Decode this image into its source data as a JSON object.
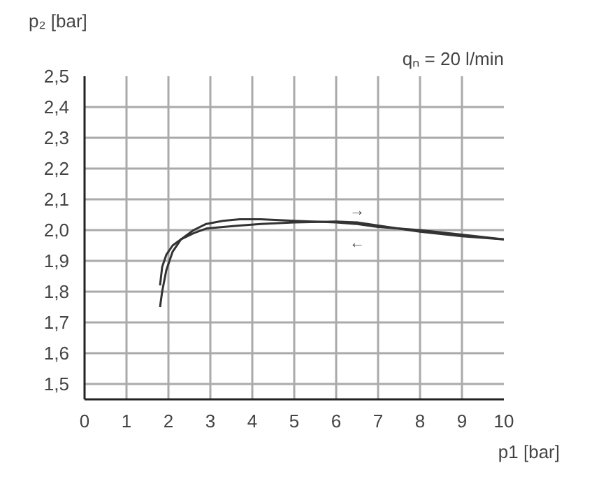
{
  "chart_data": {
    "type": "line",
    "xlabel": "p1 [bar]",
    "ylabel": "p₂ [bar]",
    "annotations": [
      "qₙ = 20 l/min",
      {
        "text": "→",
        "x": 6.5,
        "y": 2.025
      },
      {
        "text": "←",
        "x": 6.5,
        "y": 2.02
      }
    ],
    "series": [
      {
        "color": "#333333",
        "x": [
          1.8,
          1.85,
          1.95,
          2.1,
          2.3,
          2.6,
          2.9,
          3.3,
          3.7,
          4.2,
          5.0,
          6.0,
          6.5,
          7.0,
          8.0,
          9.0,
          10.0
        ],
        "values": [
          1.75,
          1.8,
          1.87,
          1.93,
          1.97,
          2.0,
          2.02,
          2.03,
          2.035,
          2.035,
          2.03,
          2.025,
          2.02,
          2.01,
          2.0,
          1.985,
          1.97
        ]
      },
      {
        "color": "#333333",
        "x": [
          1.8,
          1.85,
          1.95,
          2.1,
          2.3,
          2.6,
          2.9,
          3.3,
          3.7,
          4.2,
          5.0,
          6.0,
          6.5,
          7.0,
          8.0,
          9.0,
          10.0
        ],
        "values": [
          1.82,
          1.88,
          1.92,
          1.95,
          1.97,
          1.99,
          2.005,
          2.01,
          2.015,
          2.02,
          2.025,
          2.028,
          2.025,
          2.015,
          1.995,
          1.98,
          1.97
        ]
      }
    ],
    "xlim": [
      0,
      10
    ],
    "ylim": [
      1.45,
      2.5
    ],
    "xticks": [
      0,
      1,
      2,
      3,
      4,
      5,
      6,
      7,
      8,
      9,
      10
    ],
    "yticks": [
      {
        "value": 1.5,
        "label": "1,5"
      },
      {
        "value": 1.6,
        "label": "1,6"
      },
      {
        "value": 1.7,
        "label": "1,7"
      },
      {
        "value": 1.8,
        "label": "1,8"
      },
      {
        "value": 1.9,
        "label": "1,9"
      },
      {
        "value": 2.0,
        "label": "2,0"
      },
      {
        "value": 2.1,
        "label": "2,1"
      },
      {
        "value": 2.2,
        "label": "2,2"
      },
      {
        "value": 2.3,
        "label": "2,3"
      },
      {
        "value": 2.4,
        "label": "2,4"
      },
      {
        "value": 2.5,
        "label": "2,5"
      }
    ],
    "grid": true,
    "marker": "none",
    "line_style": "solid"
  }
}
